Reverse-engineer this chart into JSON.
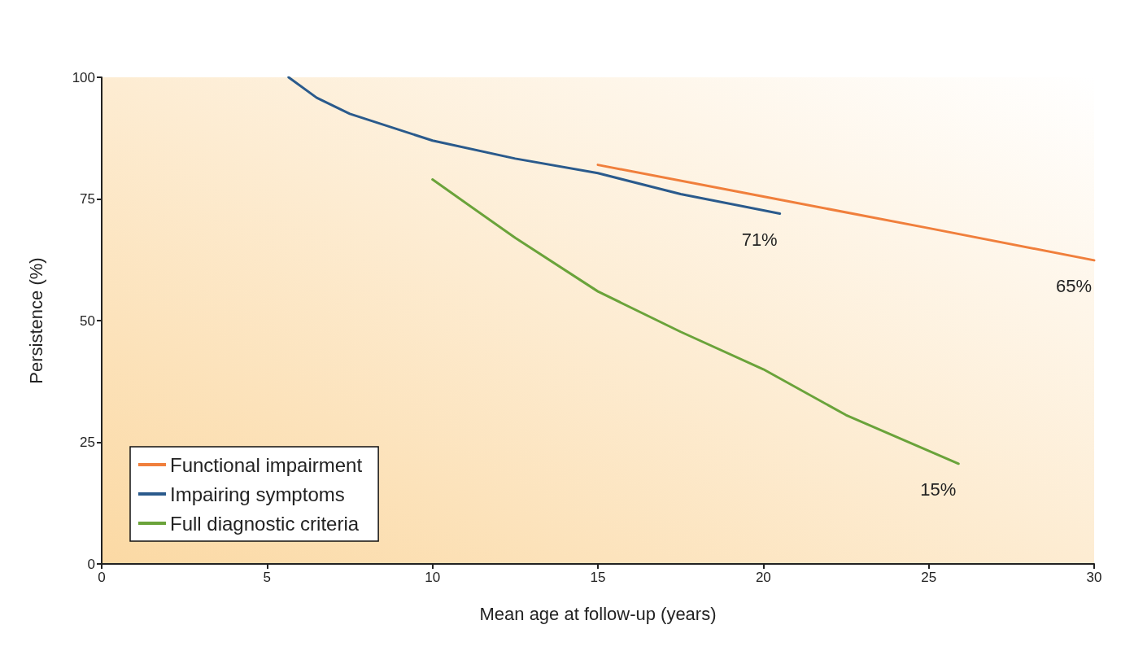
{
  "chart_data": {
    "type": "line",
    "xlabel": "Mean age at follow-up (years)",
    "ylabel": "Persistence (%)",
    "xlim": [
      0,
      30
    ],
    "xticks": [
      0,
      5,
      10,
      15,
      20,
      25,
      30
    ],
    "ylim": [
      0,
      100
    ],
    "yticks": [
      0,
      25,
      50,
      75,
      100
    ],
    "grid": false,
    "legend": "bottom left",
    "marker": "none",
    "line_style": "solid",
    "series": [
      {
        "name": "Functional impairment",
        "color": "#f07f3c",
        "x": [
          15,
          20,
          25,
          30
        ],
        "values": [
          82,
          75.5,
          69,
          62.4
        ]
      },
      {
        "name": "Impairing symptoms",
        "color": "#2a5a8c",
        "x": [
          5.65,
          6.5,
          7.5,
          10,
          12.5,
          15,
          17.5,
          20.5
        ],
        "values": [
          100,
          95.8,
          92.5,
          87,
          83.3,
          80.3,
          76,
          72
        ]
      },
      {
        "name": "Full diagnostic criteria",
        "color": "#6aa33a",
        "x": [
          10,
          12.5,
          15,
          17.5,
          20,
          22.5,
          25.9
        ],
        "values": [
          79,
          67,
          56,
          47.7,
          40,
          30.6,
          20.6
        ]
      }
    ],
    "annotations": [
      "65%",
      "71%",
      "15%"
    ]
  }
}
